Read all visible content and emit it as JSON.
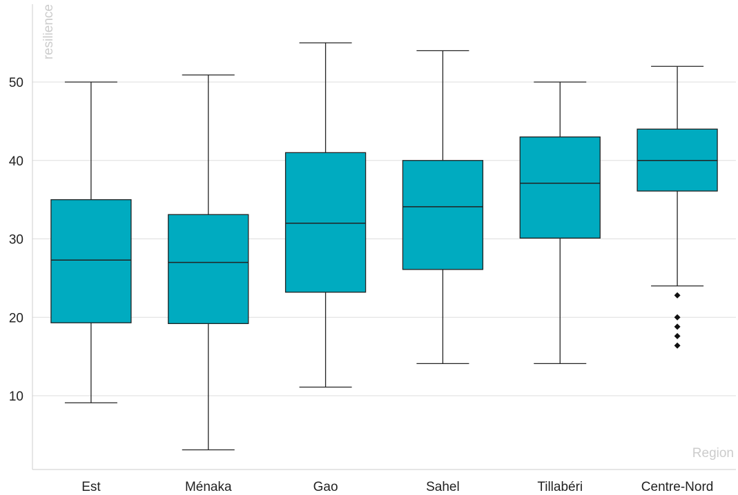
{
  "chart_data": {
    "type": "box",
    "xlabel": "Region",
    "ylabel": "resilience",
    "ylim": [
      0,
      58
    ],
    "yticks": [
      10,
      20,
      30,
      40,
      50
    ],
    "grid": true,
    "box_color": "#00abc0",
    "categories": [
      "Est",
      "Ménaka",
      "Gao",
      "Sahel",
      "Tillabéri",
      "Centre-Nord"
    ],
    "boxes": [
      {
        "category": "Est",
        "min": 9.1,
        "q1": 19.3,
        "median": 27.3,
        "q3": 35.0,
        "max": 50.0,
        "outliers": []
      },
      {
        "category": "Ménaka",
        "min": 3.1,
        "q1": 19.2,
        "median": 27.0,
        "q3": 33.1,
        "max": 50.9,
        "outliers": []
      },
      {
        "category": "Gao",
        "min": 11.1,
        "q1": 23.2,
        "median": 32.0,
        "q3": 41.0,
        "max": 55.0,
        "outliers": []
      },
      {
        "category": "Sahel",
        "min": 14.1,
        "q1": 26.1,
        "median": 34.1,
        "q3": 40.0,
        "max": 54.0,
        "outliers": []
      },
      {
        "category": "Tillabéri",
        "min": 14.1,
        "q1": 30.1,
        "median": 37.1,
        "q3": 43.0,
        "max": 50.0,
        "outliers": []
      },
      {
        "category": "Centre-Nord",
        "min": 24.0,
        "q1": 36.1,
        "median": 40.0,
        "q3": 44.0,
        "max": 52.0,
        "outliers": [
          22.8,
          20.0,
          18.8,
          17.6,
          16.4
        ]
      }
    ]
  }
}
